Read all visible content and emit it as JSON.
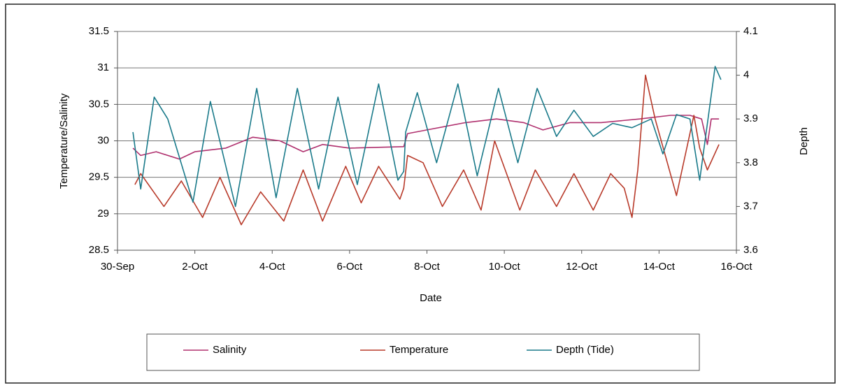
{
  "chart_data": {
    "type": "line",
    "x_label": "Date",
    "y_label": "Temperature/Salinity",
    "y2_label": "Depth",
    "xlim": [
      0,
      16
    ],
    "xticks": [
      {
        "value": 0,
        "label": "30-Sep"
      },
      {
        "value": 2,
        "label": "2-Oct"
      },
      {
        "value": 4,
        "label": "4-Oct"
      },
      {
        "value": 6,
        "label": "6-Oct"
      },
      {
        "value": 8,
        "label": "8-Oct"
      },
      {
        "value": 10,
        "label": "10-Oct"
      },
      {
        "value": 12,
        "label": "12-Oct"
      },
      {
        "value": 14,
        "label": "14-Oct"
      },
      {
        "value": 16,
        "label": "16-Oct"
      }
    ],
    "ylim": [
      28.5,
      31.5
    ],
    "yticks": [
      28.5,
      29,
      29.5,
      30,
      30.5,
      31,
      31.5
    ],
    "y2lim": [
      3.6,
      4.1
    ],
    "y2ticks": [
      3.6,
      3.7,
      3.8,
      3.9,
      4,
      4.1
    ],
    "grid": true,
    "series": [
      {
        "name": "Salinity",
        "color": "#b0306e",
        "x": [
          0.4,
          0.6,
          1.0,
          1.6,
          2.0,
          2.8,
          3.5,
          4.2,
          4.8,
          5.3,
          6.0,
          7.4,
          7.5,
          8.0,
          9.0,
          9.8,
          10.5,
          11.0,
          11.7,
          12.5,
          13.5,
          14.3,
          14.8,
          15.1,
          15.25,
          15.35,
          15.55
        ],
        "values": [
          29.9,
          29.8,
          29.85,
          29.75,
          29.85,
          29.9,
          30.05,
          30.0,
          29.85,
          29.95,
          29.9,
          29.92,
          30.1,
          30.15,
          30.25,
          30.3,
          30.25,
          30.15,
          30.25,
          30.25,
          30.3,
          30.35,
          30.35,
          30.3,
          29.95,
          30.3,
          30.3
        ]
      },
      {
        "name": "Temperature",
        "color": "#b83a2a",
        "x": [
          0.45,
          0.6,
          1.2,
          1.65,
          2.2,
          2.65,
          3.2,
          3.7,
          4.3,
          4.8,
          5.3,
          5.9,
          6.3,
          6.75,
          7.3,
          7.4,
          7.5,
          7.9,
          8.4,
          8.95,
          9.4,
          9.75,
          10.4,
          10.8,
          11.35,
          11.8,
          12.3,
          12.75,
          13.1,
          13.3,
          13.45,
          13.65,
          13.9,
          14.45,
          14.9,
          15.05,
          15.25,
          15.55
        ],
        "values": [
          29.4,
          29.55,
          29.1,
          29.45,
          28.95,
          29.5,
          28.85,
          29.3,
          28.9,
          29.6,
          28.9,
          29.65,
          29.15,
          29.65,
          29.2,
          29.35,
          29.8,
          29.7,
          29.1,
          29.6,
          29.05,
          30.0,
          29.05,
          29.6,
          29.1,
          29.55,
          29.05,
          29.55,
          29.35,
          28.95,
          29.6,
          30.9,
          30.3,
          29.25,
          30.35,
          29.9,
          29.6,
          29.95
        ]
      },
      {
        "name": "Depth (Tide)",
        "color": "#1a7a8a",
        "axis": "y2",
        "x": [
          0.4,
          0.6,
          0.95,
          1.3,
          1.95,
          2.4,
          3.05,
          3.6,
          4.1,
          4.65,
          5.2,
          5.7,
          6.2,
          6.75,
          7.25,
          7.4,
          7.45,
          7.75,
          8.25,
          8.8,
          9.3,
          9.85,
          10.35,
          10.85,
          11.35,
          11.8,
          12.3,
          12.8,
          13.3,
          13.8,
          14.1,
          14.45,
          14.8,
          15.05,
          15.45,
          15.6
        ],
        "values": [
          3.87,
          3.74,
          3.95,
          3.9,
          3.71,
          3.94,
          3.7,
          3.97,
          3.72,
          3.97,
          3.74,
          3.95,
          3.75,
          3.98,
          3.76,
          3.78,
          3.87,
          3.96,
          3.8,
          3.98,
          3.77,
          3.97,
          3.8,
          3.97,
          3.86,
          3.92,
          3.86,
          3.89,
          3.88,
          3.9,
          3.82,
          3.91,
          3.9,
          3.76,
          4.02,
          3.99
        ]
      }
    ]
  }
}
